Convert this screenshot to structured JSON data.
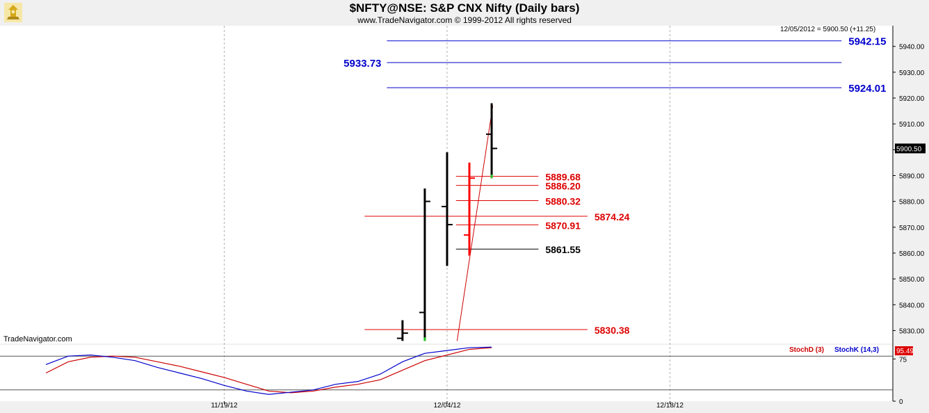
{
  "header": {
    "title": "$NFTY@NSE:  S&P CNX Nifty  (Daily bars)",
    "copyright": "www.TradeNavigator.com © 1999-2012 All rights reserved",
    "readout": "12/05/2012 = 5900.50 (+11.25)",
    "watermark": "TradeNavigator.com"
  },
  "colors": {
    "background": "#ffffff",
    "frame": "#f0f0f0",
    "bars": "#000000",
    "bars_highlight": "#ff0000",
    "level_blue": "#0000cc",
    "level_red": "#dd0000",
    "level_black": "#000000",
    "trend_line": "#cc0000",
    "stoch_d": "#cc0000",
    "stoch_k": "#0000cc",
    "last_price_box": "#000000",
    "stoch_value_box": "#dd0000"
  },
  "chart_data": [
    {
      "type": "bar",
      "subtype": "ohlc",
      "ylim": [
        5825,
        5948
      ],
      "yticks": [
        "5830.00",
        "5840.00",
        "5850.00",
        "5860.00",
        "5870.00",
        "5880.00",
        "5890.00",
        "5900.00",
        "5910.00",
        "5920.00",
        "5930.00",
        "5940.00"
      ],
      "ytick_values": [
        5830,
        5840,
        5850,
        5860,
        5870,
        5880,
        5890,
        5900,
        5910,
        5920,
        5930,
        5940
      ],
      "xticks": [
        "11/19/12",
        "12/04/12",
        "12/18/12"
      ],
      "xtick_index": [
        9,
        19,
        29
      ],
      "last_price": "5900.50",
      "bars": [
        {
          "i": 17,
          "open": 5827,
          "high": 5834,
          "low": 5826,
          "close": 5829,
          "color": "black"
        },
        {
          "i": 18,
          "open": 5837,
          "high": 5885,
          "low": 5826,
          "close": 5880,
          "color": "black"
        },
        {
          "i": 19,
          "open": 5878,
          "high": 5899,
          "low": 5855,
          "close": 5871,
          "color": "black"
        },
        {
          "i": 20,
          "open": 5867,
          "high": 5895,
          "low": 5859,
          "close": 5889,
          "color": "red"
        },
        {
          "i": 21,
          "open": 5906,
          "high": 5918,
          "low": 5889,
          "close": 5900.5,
          "color": "black"
        }
      ],
      "levels": [
        {
          "value": 5942.15,
          "label": "5942.15",
          "color": "blue",
          "from": 16.3,
          "to": 36.7,
          "label_side": "right"
        },
        {
          "value": 5933.73,
          "label": "5933.73",
          "color": "blue",
          "from": 16.3,
          "to": 36.7,
          "label_side": "left"
        },
        {
          "value": 5924.01,
          "label": "5924.01",
          "color": "blue",
          "from": 16.3,
          "to": 36.7,
          "label_side": "right"
        },
        {
          "value": 5889.68,
          "label": "5889.68",
          "color": "red",
          "from": 19.4,
          "to": 23.1,
          "label_side": "right"
        },
        {
          "value": 5886.2,
          "label": "5886.20",
          "color": "red",
          "from": 19.4,
          "to": 23.1,
          "label_side": "right"
        },
        {
          "value": 5880.32,
          "label": "5880.32",
          "color": "red",
          "from": 19.4,
          "to": 23.1,
          "label_side": "right"
        },
        {
          "value": 5874.24,
          "label": "5874.24",
          "color": "red",
          "from": 15.3,
          "to": 25.3,
          "label_side": "right"
        },
        {
          "value": 5870.91,
          "label": "5870.91",
          "color": "red",
          "from": 19.4,
          "to": 23.1,
          "label_side": "right"
        },
        {
          "value": 5861.55,
          "label": "5861.55",
          "color": "black",
          "from": 19.4,
          "to": 23.1,
          "label_side": "right"
        },
        {
          "value": 5830.38,
          "label": "5830.38",
          "color": "red",
          "from": 15.3,
          "to": 25.3,
          "label_side": "right"
        }
      ],
      "trend_line": {
        "from": [
          19.45,
          5826
        ],
        "to": [
          21.05,
          5917
        ]
      }
    },
    {
      "type": "line",
      "ylim": [
        0,
        100
      ],
      "yticks": [
        "75",
        "0"
      ],
      "ytick_values": [
        75,
        0
      ],
      "hlines": [
        80,
        20
      ],
      "value_box": "95.49",
      "series": [
        {
          "name": "StochD (3)",
          "color": "red",
          "x": [
            1,
            2,
            3,
            4,
            5,
            6,
            7,
            8,
            9,
            10,
            11,
            12,
            13,
            14,
            15,
            16,
            17,
            18,
            19,
            20,
            21
          ],
          "values": [
            50,
            70,
            78,
            80,
            78,
            70,
            62,
            52,
            42,
            30,
            18,
            15,
            18,
            25,
            30,
            38,
            55,
            72,
            82,
            92,
            95
          ]
        },
        {
          "name": "StochK (14,3)",
          "color": "blue",
          "x": [
            1,
            2,
            3,
            4,
            5,
            6,
            7,
            8,
            9,
            10,
            11,
            12,
            13,
            14,
            15,
            16,
            17,
            18,
            19,
            20,
            21
          ],
          "values": [
            65,
            80,
            82,
            78,
            72,
            60,
            50,
            40,
            28,
            18,
            12,
            16,
            20,
            30,
            35,
            48,
            70,
            85,
            90,
            95,
            96
          ]
        }
      ]
    }
  ]
}
